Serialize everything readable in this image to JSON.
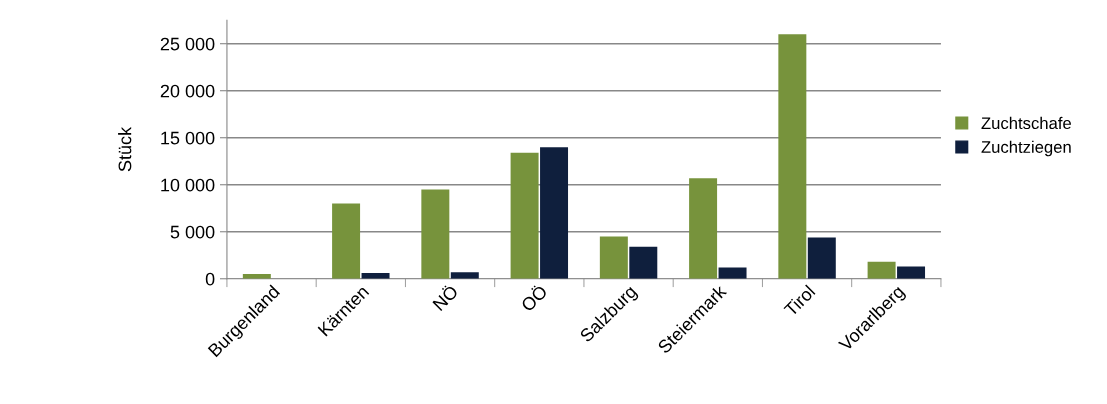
{
  "chart_data": {
    "type": "bar",
    "ylabel": "Stück",
    "categories": [
      "Burgenland",
      "Kärnten",
      "NÖ",
      "OÖ",
      "Salzburg",
      "Steiermark",
      "Tirol",
      "Vorarlberg"
    ],
    "series": [
      {
        "name": "Zuchtschafe",
        "color": "#77933c",
        "values": [
          500,
          8000,
          9500,
          13400,
          4500,
          10700,
          26000,
          1800
        ]
      },
      {
        "name": "Zuchtziegen",
        "color": "#0f1f3d",
        "values": [
          0,
          600,
          700,
          14000,
          3400,
          1200,
          4400,
          1300
        ]
      }
    ],
    "ylim": [
      0,
      27500
    ],
    "yticks": [
      {
        "value": 0,
        "label": "0"
      },
      {
        "value": 5000,
        "label": "5 000"
      },
      {
        "value": 10000,
        "label": "10 000"
      },
      {
        "value": 15000,
        "label": "15 000"
      },
      {
        "value": 20000,
        "label": "20 000"
      },
      {
        "value": 25000,
        "label": "25 000"
      }
    ],
    "grid": "y",
    "legend": "right"
  }
}
